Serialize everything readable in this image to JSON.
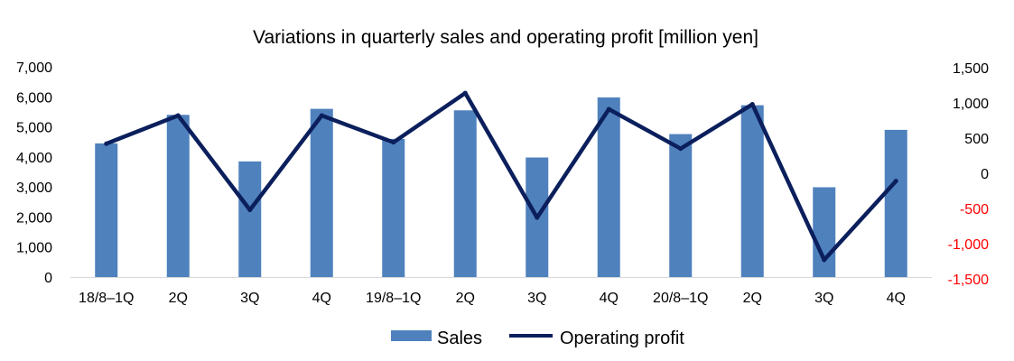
{
  "chart_data": {
    "type": "bar",
    "title": "Variations in quarterly sales and operating profit [million yen]",
    "categories": [
      "18/8–1Q",
      "2Q",
      "3Q",
      "4Q",
      "19/8–1Q",
      "2Q",
      "3Q",
      "4Q",
      "20/8–1Q",
      "2Q",
      "3Q",
      "4Q"
    ],
    "series": [
      {
        "name": "Sales",
        "type": "bar",
        "axis": "left",
        "color": "#4F81BD",
        "values": [
          4450,
          5400,
          3850,
          5600,
          4600,
          5550,
          3980,
          5980,
          4760,
          5720,
          2990,
          4900
        ]
      },
      {
        "name": "Operating profit",
        "type": "line",
        "axis": "right",
        "color": "#0B1F5C",
        "values": [
          420,
          820,
          -520,
          820,
          440,
          1140,
          -630,
          910,
          350,
          980,
          -1230,
          -110
        ]
      }
    ],
    "y_left": {
      "ylim": [
        0,
        7000
      ],
      "ticks": [
        0,
        1000,
        2000,
        3000,
        4000,
        5000,
        6000,
        7000
      ],
      "tick_labels": [
        "0",
        "1,000",
        "2,000",
        "3,000",
        "4,000",
        "5,000",
        "6,000",
        "7,000"
      ],
      "tick_color": "#000000"
    },
    "y_right": {
      "ylim": [
        -1500,
        1500
      ],
      "ticks": [
        -1500,
        -1000,
        -500,
        0,
        500,
        1000,
        1500
      ],
      "tick_labels": [
        "-1,500",
        "-1,000",
        "-500",
        "0",
        "500",
        "1,000",
        "1,500"
      ],
      "positive_color": "#000000",
      "negative_color": "#FF0000"
    },
    "grid": false,
    "legend": {
      "position": "bottom",
      "entries": [
        "Sales",
        "Operating profit"
      ]
    },
    "axis_color": "#D9D9D9"
  }
}
